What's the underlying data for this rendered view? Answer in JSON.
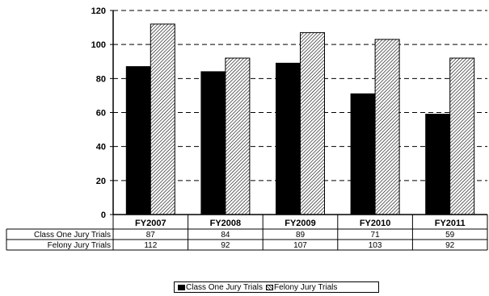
{
  "chart_data": {
    "type": "bar",
    "categories": [
      "FY2007",
      "FY2008",
      "FY2009",
      "FY2010",
      "FY2011"
    ],
    "series": [
      {
        "name": "Class One Jury Trials",
        "values": [
          87,
          84,
          89,
          71,
          59
        ],
        "fill": "solid",
        "color": "#000000"
      },
      {
        "name": "Felony Jury Trials",
        "values": [
          112,
          92,
          107,
          103,
          92
        ],
        "fill": "hatched",
        "color": "#000000"
      }
    ],
    "ylim": [
      0,
      120
    ],
    "yticks": [
      0,
      20,
      40,
      60,
      80,
      100,
      120
    ],
    "grid": "horizontal-dashed",
    "data_table": true,
    "legend": "bottom"
  }
}
